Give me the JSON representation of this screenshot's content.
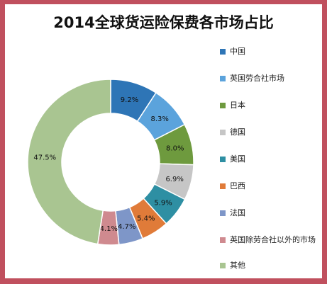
{
  "chart_data": {
    "type": "pie",
    "style": "donut",
    "title": "2014全球货运险保费各市场占比",
    "categories": [
      "中国",
      "英国劳合社市场",
      "日本",
      "德国",
      "美国",
      "巴西",
      "法国",
      "英国除劳合社以外的市场",
      "其他"
    ],
    "values": [
      9.2,
      8.3,
      8.0,
      6.9,
      5.9,
      5.4,
      4.7,
      4.1,
      47.5
    ],
    "data_labels": [
      "9.2%",
      "8.3%",
      "8.0%",
      "6.9%",
      "5.9%",
      "5.4%",
      "4.7%",
      "4.1%",
      "47.5%"
    ],
    "colors": [
      "#2e75b6",
      "#5ba3dc",
      "#6e9a3e",
      "#c6c6c6",
      "#2e8fa3",
      "#e07b39",
      "#7e96c8",
      "#cf8a8f",
      "#a9c591"
    ],
    "legend_position": "right"
  }
}
